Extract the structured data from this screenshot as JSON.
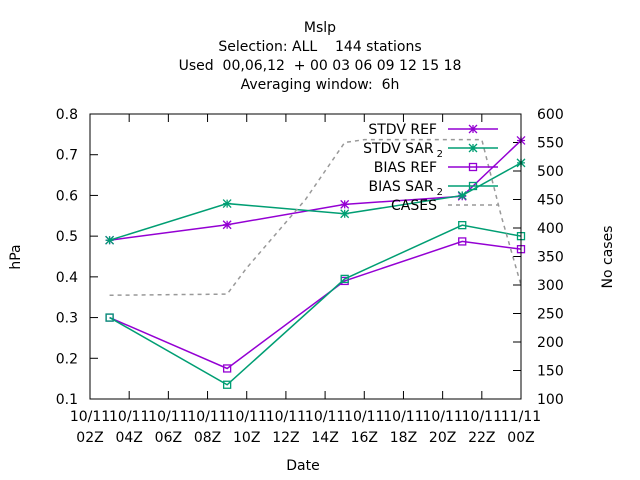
{
  "chart_data": {
    "type": "line",
    "title_lines": [
      "Mslp",
      "Selection: ALL    144 stations",
      "Used  00,06,12  + 00 03 06 09 12 15 18",
      "Averaging window:  6h"
    ],
    "xlabel": "Date",
    "ylabel": "hPa",
    "y2label": "No cases",
    "x_ticks": [
      {
        "line1": "10/11",
        "line2": "02Z"
      },
      {
        "line1": "10/11",
        "line2": "04Z"
      },
      {
        "line1": "10/11",
        "line2": "06Z"
      },
      {
        "line1": "10/11",
        "line2": "08Z"
      },
      {
        "line1": "10/11",
        "line2": "10Z"
      },
      {
        "line1": "10/11",
        "line2": "12Z"
      },
      {
        "line1": "10/11",
        "line2": "14Z"
      },
      {
        "line1": "10/11",
        "line2": "16Z"
      },
      {
        "line1": "10/11",
        "line2": "18Z"
      },
      {
        "line1": "10/11",
        "line2": "20Z"
      },
      {
        "line1": "10/11",
        "line2": "22Z"
      },
      {
        "line1": "11/11",
        "line2": "00Z"
      }
    ],
    "xlim_hours": [
      2,
      24
    ],
    "ylim": [
      0.1,
      0.8
    ],
    "y_ticks": [
      "0.1",
      "0.2",
      "0.3",
      "0.4",
      "0.5",
      "0.6",
      "0.7",
      "0.8"
    ],
    "y2lim": [
      100,
      600
    ],
    "y2_ticks": [
      "100",
      "150",
      "200",
      "250",
      "300",
      "350",
      "400",
      "450",
      "500",
      "550",
      "600"
    ],
    "legend_position": "top-right",
    "series": [
      {
        "name": "STDV REF",
        "name_sub": "",
        "color": "#9400d3",
        "marker": "star",
        "axis": "y",
        "x_hours": [
          3,
          9,
          15,
          21,
          24
        ],
        "values": [
          0.49,
          0.528,
          0.578,
          0.598,
          0.735
        ]
      },
      {
        "name": "STDV SAR",
        "name_sub": "2",
        "color": "#009e73",
        "marker": "star",
        "axis": "y",
        "x_hours": [
          3,
          9,
          15,
          21,
          24
        ],
        "values": [
          0.49,
          0.58,
          0.555,
          0.6,
          0.68
        ]
      },
      {
        "name": "BIAS REF",
        "name_sub": "",
        "color": "#9400d3",
        "marker": "square",
        "axis": "y",
        "x_hours": [
          3,
          9,
          15,
          21,
          24
        ],
        "values": [
          0.3,
          0.175,
          0.39,
          0.487,
          0.468
        ]
      },
      {
        "name": "BIAS SAR",
        "name_sub": "2",
        "color": "#009e73",
        "marker": "square",
        "axis": "y",
        "x_hours": [
          3,
          9,
          15,
          21,
          24
        ],
        "values": [
          0.3,
          0.135,
          0.395,
          0.527,
          0.5
        ]
      },
      {
        "name": "CASES",
        "name_sub": "",
        "color": "#999999",
        "marker": "none",
        "dashed": true,
        "axis": "y2",
        "x_hours": [
          3,
          9,
          10,
          11,
          12,
          13,
          14,
          15,
          16,
          17,
          18,
          19,
          20,
          21,
          22,
          23,
          24
        ],
        "values": [
          282,
          284,
          330,
          370,
          410,
          450,
          500,
          550,
          555,
          555,
          555,
          555,
          555,
          555,
          555,
          420,
          300
        ]
      }
    ]
  }
}
